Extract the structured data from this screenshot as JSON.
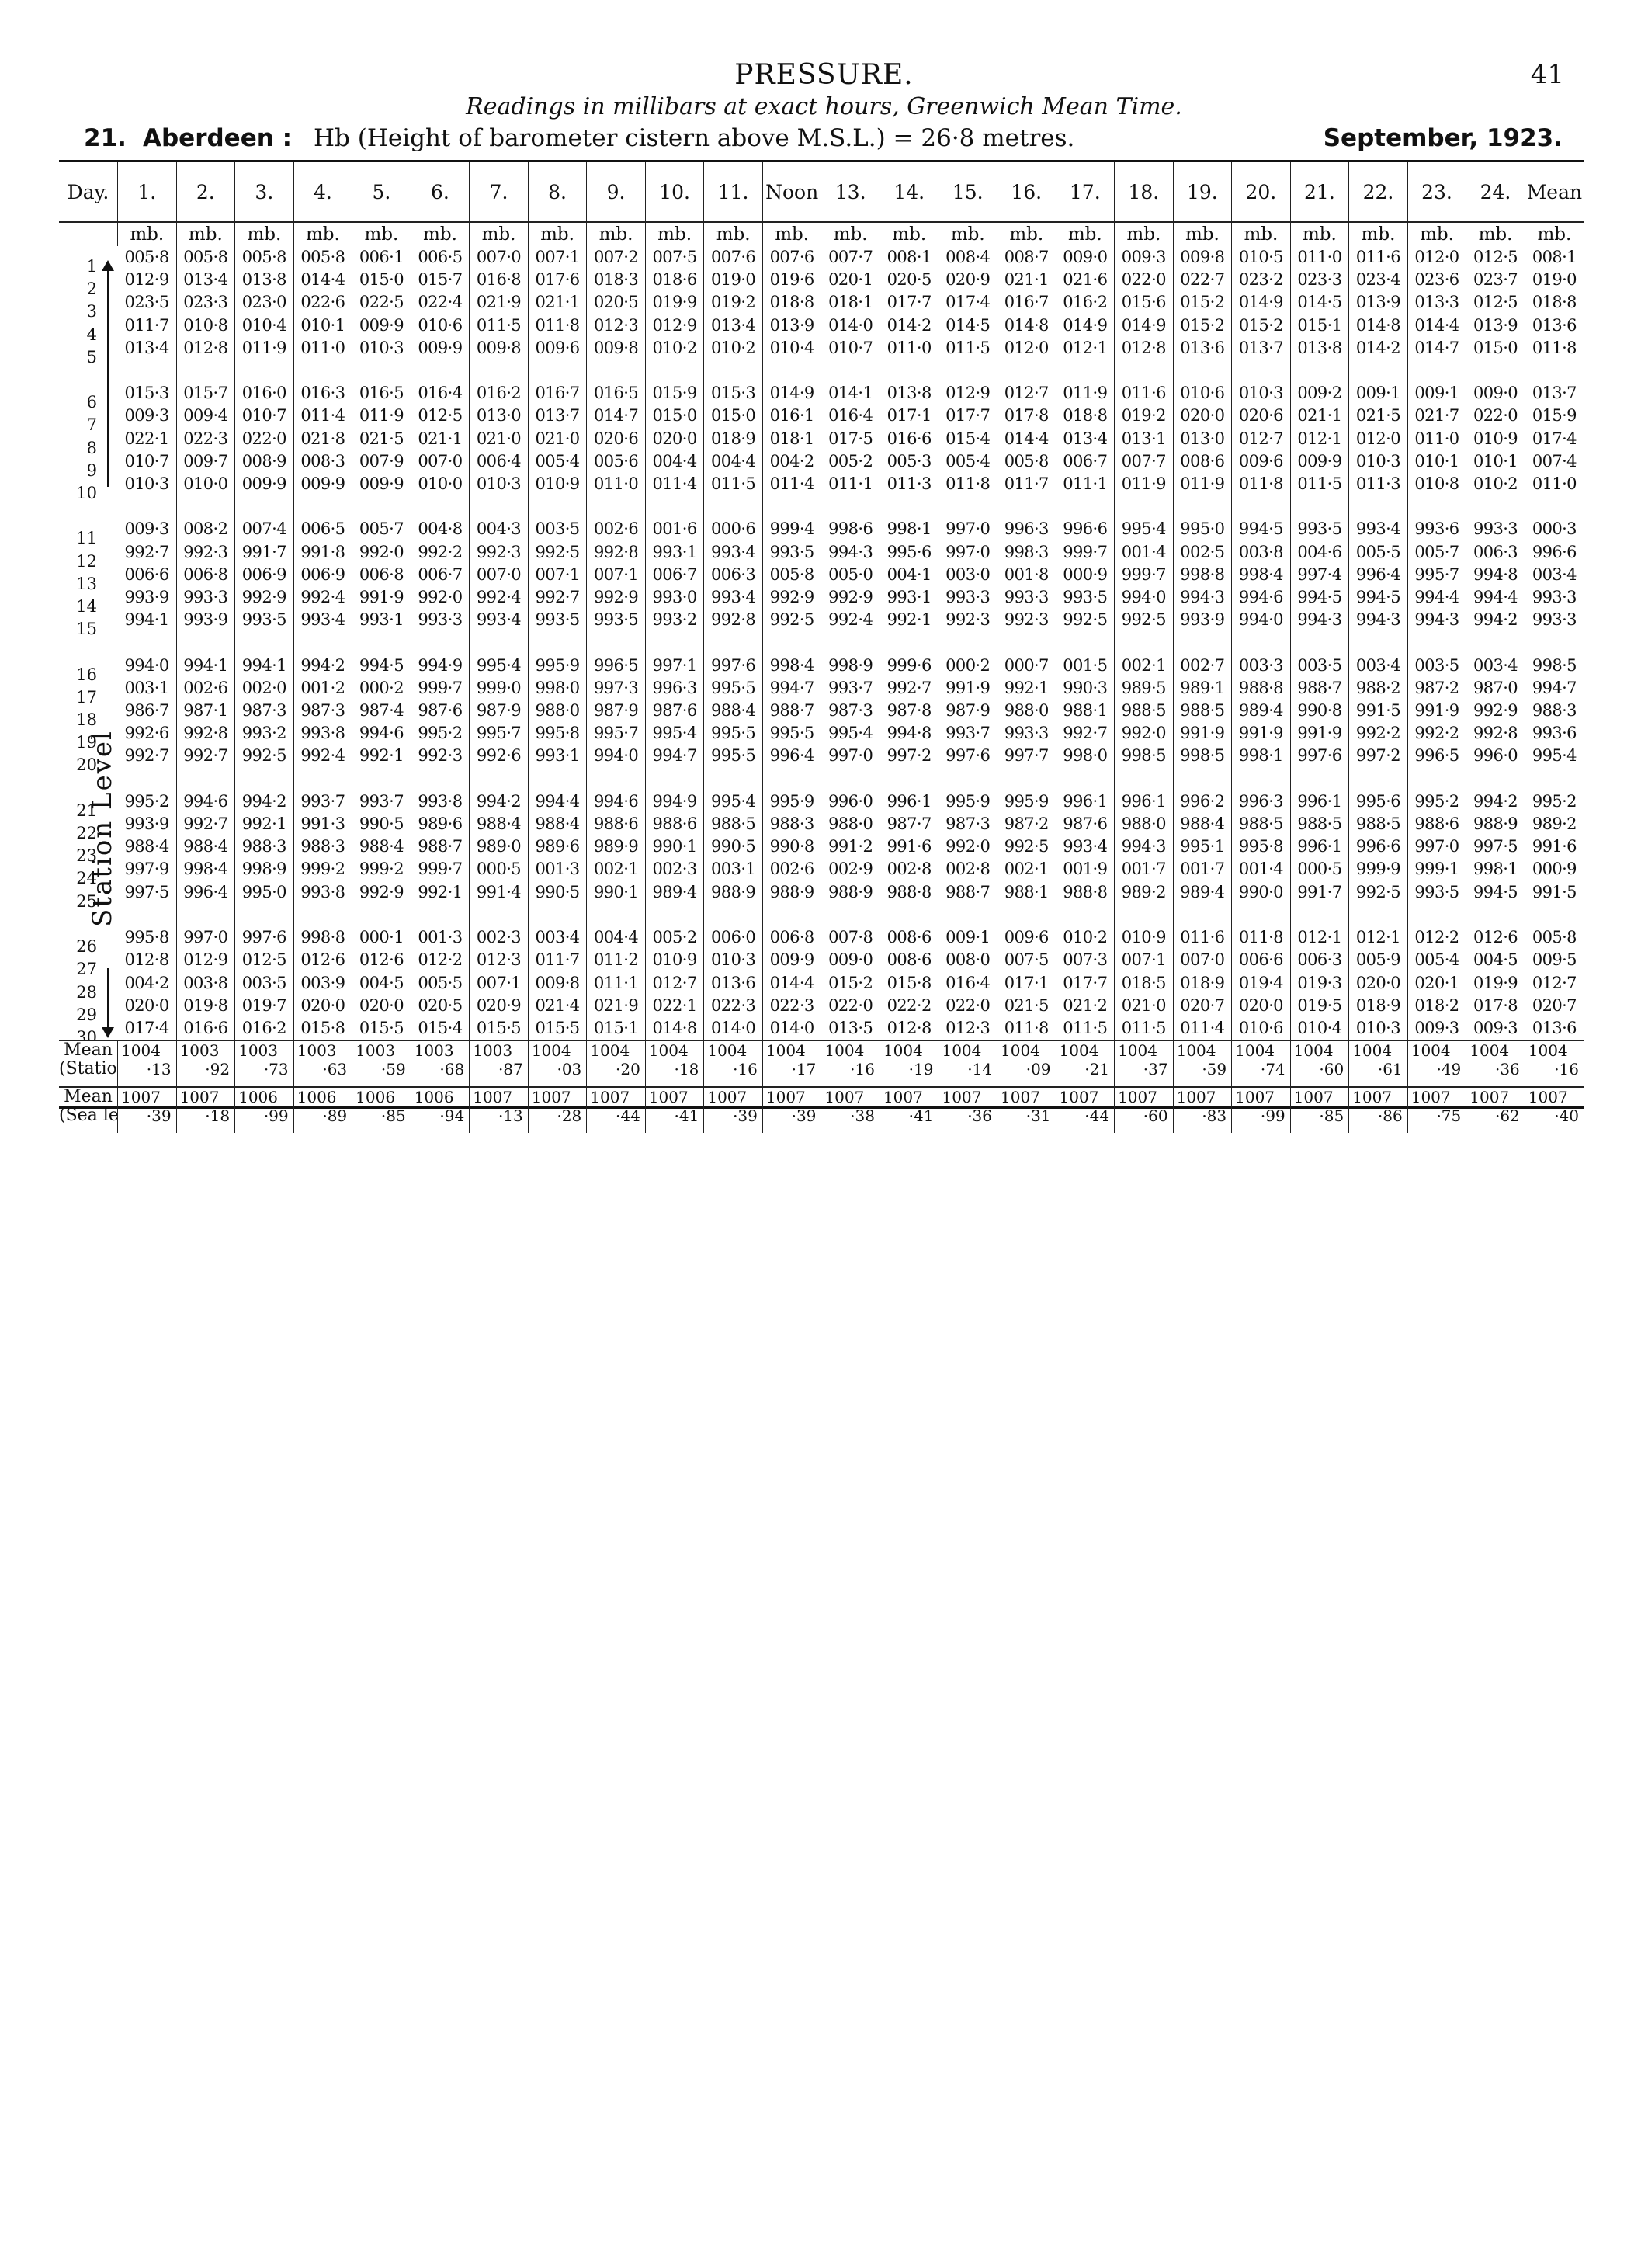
{
  "header": {
    "title": "PRESSURE.",
    "page_number": "41",
    "subtitle": "Readings in millibars at exact hours, Greenwich Mean Time.",
    "station_number": "21.",
    "station_name": "Aberdeen :",
    "station_desc": "Hb (Height of barometer cistern above M.S.L.) = 26·8 metres.",
    "month": "September, 1923."
  },
  "side_label": "Station Level",
  "columns": {
    "day_header": "Day.",
    "hours": [
      "1.",
      "2.",
      "3.",
      "4.",
      "5.",
      "6.",
      "7.",
      "8.",
      "9.",
      "10.",
      "11.",
      "Noon",
      "13.",
      "14.",
      "15.",
      "16.",
      "17.",
      "18.",
      "19.",
      "20.",
      "21.",
      "22.",
      "23.",
      "24.",
      "Mean"
    ],
    "unit": "mb."
  },
  "days": "1\n2\n3\n4\n5\n\n6\n7\n8\n9\n10\n\n11\n12\n13\n14\n15\n\n16\n17\n18\n19\n20\n\n21\n22\n23\n24\n25\n\n26\n27\n28\n29\n30",
  "values": [
    "005·8\n012·9\n023·5\n011·7\n013·4\n\n015·3\n009·3\n022·1\n010·7\n010·3\n\n009·3\n992·7\n006·6\n993·9\n994·1\n\n994·0\n003·1\n986·7\n992·6\n992·7\n\n995·2\n993·9\n988·4\n997·9\n997·5\n\n995·8\n012·8\n004·2\n020·0\n017·4",
    "005·8\n013·4\n023·3\n010·8\n012·8\n\n015·7\n009·4\n022·3\n009·7\n010·0\n\n008·2\n992·3\n006·8\n993·3\n993·9\n\n994·1\n002·6\n987·1\n992·8\n992·7\n\n994·6\n992·7\n988·4\n998·4\n996·4\n\n997·0\n012·9\n003·8\n019·8\n016·6",
    "005·8\n013·8\n023·0\n010·4\n011·9\n\n016·0\n010·7\n022·0\n008·9\n009·9\n\n007·4\n991·7\n006·9\n992·9\n993·5\n\n994·1\n002·0\n987·3\n993·2\n992·5\n\n994·2\n992·1\n988·3\n998·9\n995·0\n\n997·6\n012·5\n003·5\n019·7\n016·2",
    "005·8\n014·4\n022·6\n010·1\n011·0\n\n016·3\n011·4\n021·8\n008·3\n009·9\n\n006·5\n991·8\n006·9\n992·4\n993·4\n\n994·2\n001·2\n987·3\n993·8\n992·4\n\n993·7\n991·3\n988·3\n999·2\n993·8\n\n998·8\n012·6\n003·9\n020·0\n015·8",
    "006·1\n015·0\n022·5\n009·9\n010·3\n\n016·5\n011·9\n021·5\n007·9\n009·9\n\n005·7\n992·0\n006·8\n991·9\n993·1\n\n994·5\n000·2\n987·4\n994·6\n992·1\n\n993·7\n990·5\n988·4\n999·2\n992·9\n\n000·1\n012·6\n004·5\n020·0\n015·5",
    "006·5\n015·7\n022·4\n010·6\n009·9\n\n016·4\n012·5\n021·1\n007·0\n010·0\n\n004·8\n992·2\n006·7\n992·0\n993·3\n\n994·9\n999·7\n987·6\n995·2\n992·3\n\n993·8\n989·6\n988·7\n999·7\n992·1\n\n001·3\n012·2\n005·5\n020·5\n015·4",
    "007·0\n016·8\n021·9\n011·5\n009·8\n\n016·2\n013·0\n021·0\n006·4\n010·3\n\n004·3\n992·3\n007·0\n992·4\n993·4\n\n995·4\n999·0\n987·9\n995·7\n992·6\n\n994·2\n988·4\n989·0\n000·5\n991·4\n\n002·3\n012·3\n007·1\n020·9\n015·5",
    "007·1\n017·6\n021·1\n011·8\n009·6\n\n016·7\n013·7\n021·0\n005·4\n010·9\n\n003·5\n992·5\n007·1\n992·7\n993·5\n\n995·9\n998·0\n988·0\n995·8\n993·1\n\n994·4\n988·4\n989·6\n001·3\n990·5\n\n003·4\n011·7\n009·8\n021·4\n015·5",
    "007·2\n018·3\n020·5\n012·3\n009·8\n\n016·5\n014·7\n020·6\n005·6\n011·0\n\n002·6\n992·8\n007·1\n992·9\n993·5\n\n996·5\n997·3\n987·9\n995·7\n994·0\n\n994·6\n988·6\n989·9\n002·1\n990·1\n\n004·4\n011·2\n011·1\n021·9\n015·1",
    "007·5\n018·6\n019·9\n012·9\n010·2\n\n015·9\n015·0\n020·0\n004·4\n011·4\n\n001·6\n993·1\n006·7\n993·0\n993·2\n\n997·1\n996·3\n987·6\n995·4\n994·7\n\n994·9\n988·6\n990·1\n002·3\n989·4\n\n005·2\n010·9\n012·7\n022·1\n014·8",
    "007·6\n019·0\n019·2\n013·4\n010·2\n\n015·3\n015·0\n018·9\n004·4\n011·5\n\n000·6\n993·4\n006·3\n993·4\n992·8\n\n997·6\n995·5\n988·4\n995·5\n995·5\n\n995·4\n988·5\n990·5\n003·1\n988·9\n\n006·0\n010·3\n013·6\n022·3\n014·0",
    "007·6\n019·6\n018·8\n013·9\n010·4\n\n014·9\n016·1\n018·1\n004·2\n011·4\n\n999·4\n993·5\n005·8\n992·9\n992·5\n\n998·4\n994·7\n988·7\n995·5\n996·4\n\n995·9\n988·3\n990·8\n002·6\n988·9\n\n006·8\n009·9\n014·4\n022·3\n014·0",
    "007·7\n020·1\n018·1\n014·0\n010·7\n\n014·1\n016·4\n017·5\n005·2\n011·1\n\n998·6\n994·3\n005·0\n992·9\n992·4\n\n998·9\n993·7\n987·3\n995·4\n997·0\n\n996·0\n988·0\n991·2\n002·9\n988·9\n\n007·8\n009·0\n015·2\n022·0\n013·5",
    "008·1\n020·5\n017·7\n014·2\n011·0\n\n013·8\n017·1\n016·6\n005·3\n011·3\n\n998·1\n995·6\n004·1\n993·1\n992·1\n\n999·6\n992·7\n987·8\n994·8\n997·2\n\n996·1\n987·7\n991·6\n002·8\n988·8\n\n008·6\n008·6\n015·8\n022·2\n012·8",
    "008·4\n020·9\n017·4\n014·5\n011·5\n\n012·9\n017·7\n015·4\n005·4\n011·8\n\n997·0\n997·0\n003·0\n993·3\n992·3\n\n000·2\n991·9\n987·9\n993·7\n997·6\n\n995·9\n987·3\n992·0\n002·8\n988·7\n\n009·1\n008·0\n016·4\n022·0\n012·3",
    "008·7\n021·1\n016·7\n014·8\n012·0\n\n012·7\n017·8\n014·4\n005·8\n011·7\n\n996·3\n998·3\n001·8\n993·3\n992·3\n\n000·7\n992·1\n988·0\n993·3\n997·7\n\n995·9\n987·2\n992·5\n002·1\n988·1\n\n009·6\n007·5\n017·1\n021·5\n011·8",
    "009·0\n021·6\n016·2\n014·9\n012·1\n\n011·9\n018·8\n013·4\n006·7\n011·1\n\n996·6\n999·7\n000·9\n993·5\n992·5\n\n001·5\n990·3\n988·1\n992·7\n998·0\n\n996·1\n987·6\n993·4\n001·9\n988·8\n\n010·2\n007·3\n017·7\n021·2\n011·5",
    "009·3\n022·0\n015·6\n014·9\n012·8\n\n011·6\n019·2\n013·1\n007·7\n011·9\n\n995·4\n001·4\n999·7\n994·0\n992·5\n\n002·1\n989·5\n988·5\n992·0\n998·5\n\n996·1\n988·0\n994·3\n001·7\n989·2\n\n010·9\n007·1\n018·5\n021·0\n011·5",
    "009·8\n022·7\n015·2\n015·2\n013·6\n\n010·6\n020·0\n013·0\n008·6\n011·9\n\n995·0\n002·5\n998·8\n994·3\n993·9\n\n002·7\n989·1\n988·5\n991·9\n998·5\n\n996·2\n988·4\n995·1\n001·7\n989·4\n\n011·6\n007·0\n018·9\n020·7\n011·4",
    "010·5\n023·2\n014·9\n015·2\n013·7\n\n010·3\n020·6\n012·7\n009·6\n011·8\n\n994·5\n003·8\n998·4\n994·6\n994·0\n\n003·3\n988·8\n989·4\n991·9\n998·1\n\n996·3\n988·5\n995·8\n001·4\n990·0\n\n011·8\n006·6\n019·4\n020·0\n010·6",
    "011·0\n023·3\n014·5\n015·1\n013·8\n\n009·2\n021·1\n012·1\n009·9\n011·5\n\n993·5\n004·6\n997·4\n994·5\n994·3\n\n003·5\n988·7\n990·8\n991·9\n997·6\n\n996·1\n988·5\n996·1\n000·5\n991·7\n\n012·1\n006·3\n019·3\n019·5\n010·4",
    "011·6\n023·4\n013·9\n014·8\n014·2\n\n009·1\n021·5\n012·0\n010·3\n011·3\n\n993·4\n005·5\n996·4\n994·5\n994·3\n\n003·4\n988·2\n991·5\n992·2\n997·2\n\n995·6\n988·5\n996·6\n999·9\n992·5\n\n012·1\n005·9\n020·0\n018·9\n010·3",
    "012·0\n023·6\n013·3\n014·4\n014·7\n\n009·1\n021·7\n011·0\n010·1\n010·8\n\n993·6\n005·7\n995·7\n994·4\n994·3\n\n003·5\n987·2\n991·9\n992·2\n996·5\n\n995·2\n988·6\n997·0\n999·1\n993·5\n\n012·2\n005·4\n020·1\n018·2\n009·3",
    "012·5\n023·7\n012·5\n013·9\n015·0\n\n009·0\n022·0\n010·9\n010·1\n010·2\n\n993·3\n006·3\n994·8\n994·4\n994·2\n\n003·4\n987·0\n992·9\n992·8\n996·0\n\n994·2\n988·9\n997·5\n998·1\n994·5\n\n012·6\n004·5\n019·9\n017·8\n009·3",
    "008·1\n019·0\n018·8\n013·6\n011·8\n\n013·7\n015·9\n017·4\n007·4\n011·0\n\n000·3\n996·6\n003·4\n993·3\n993·3\n\n998·5\n994·7\n988·3\n993·6\n995·4\n\n995·2\n989·2\n991·6\n000·9\n991·5\n\n005·8\n009·5\n012·7\n020·7\n013·6"
  ],
  "station_mean": {
    "label": "Mean\n(Station level)",
    "int": [
      "1004",
      "1003",
      "1003",
      "1003",
      "1003",
      "1003",
      "1003",
      "1004",
      "1004",
      "1004",
      "1004",
      "1004",
      "1004",
      "1004",
      "1004",
      "1004",
      "1004",
      "1004",
      "1004",
      "1004",
      "1004",
      "1004",
      "1004",
      "1004",
      "1004"
    ],
    "frac": [
      "·13",
      "·92",
      "·73",
      "·63",
      "·59",
      "·68",
      "·87",
      "·03",
      "·20",
      "·18",
      "·16",
      "·17",
      "·16",
      "·19",
      "·14",
      "·09",
      "·21",
      "·37",
      "·59",
      "·74",
      "·60",
      "·61",
      "·49",
      "·36",
      "·16"
    ]
  },
  "sea_mean": {
    "label": "Mean\n(Sea level)",
    "int": [
      "1007",
      "1007",
      "1006",
      "1006",
      "1006",
      "1006",
      "1007",
      "1007",
      "1007",
      "1007",
      "1007",
      "1007",
      "1007",
      "1007",
      "1007",
      "1007",
      "1007",
      "1007",
      "1007",
      "1007",
      "1007",
      "1007",
      "1007",
      "1007",
      "1007"
    ],
    "frac": [
      "·39",
      "·18",
      "·99",
      "·89",
      "·85",
      "·94",
      "·13",
      "·28",
      "·44",
      "·41",
      "·39",
      "·39",
      "·38",
      "·41",
      "·36",
      "·31",
      "·44",
      "·60",
      "·83",
      "·99",
      "·85",
      "·86",
      "·75",
      "·62",
      "·40"
    ]
  }
}
